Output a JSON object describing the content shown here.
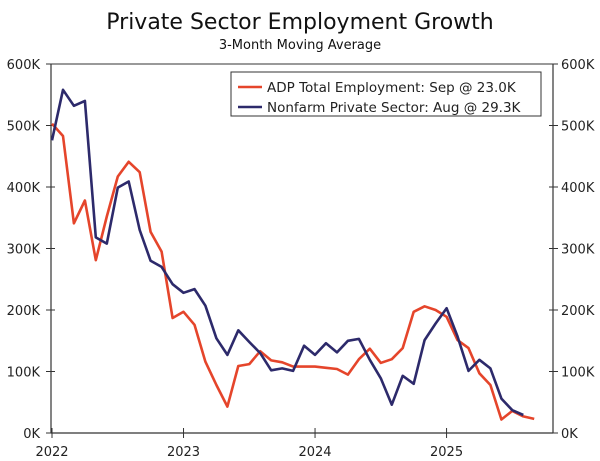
{
  "chart_data": {
    "type": "line",
    "title": "Private Sector Employment Growth",
    "subtitle": "3-Month Moving Average",
    "xlabel": "",
    "ylabel": "",
    "x_start": "2022-01",
    "x_frequency": "monthly",
    "x_ticks": [
      "2022",
      "2023",
      "2024",
      "2025"
    ],
    "y_ticks": [
      "0K",
      "100K",
      "200K",
      "300K",
      "400K",
      "500K",
      "600K"
    ],
    "ylim": [
      0,
      600
    ],
    "y_units": "thousands",
    "legend_position": "top-right",
    "series": [
      {
        "name": "ADP Total Employment: Sep @ 23.0K",
        "color": "#e5452b",
        "values": [
          503,
          483,
          341,
          378,
          281,
          352,
          417,
          441,
          424,
          327,
          295,
          187,
          197,
          176,
          116,
          78,
          43,
          109,
          112,
          133,
          118,
          115,
          108,
          108,
          108,
          106,
          104,
          95,
          120,
          137,
          114,
          120,
          138,
          197,
          206,
          200,
          189,
          151,
          138,
          97,
          78,
          22,
          36,
          27,
          23
        ]
      },
      {
        "name": "Nonfarm Private Sector: Aug @ 29.3K",
        "color": "#2d2a6b",
        "values": [
          476,
          558,
          532,
          540,
          318,
          308,
          399,
          409,
          330,
          280,
          270,
          242,
          228,
          234,
          207,
          154,
          127,
          167,
          148,
          130,
          102,
          105,
          101,
          142,
          127,
          146,
          131,
          150,
          153,
          119,
          89,
          46,
          93,
          80,
          151,
          178,
          203,
          157,
          101,
          119,
          105,
          56,
          37,
          29.3
        ]
      }
    ]
  }
}
